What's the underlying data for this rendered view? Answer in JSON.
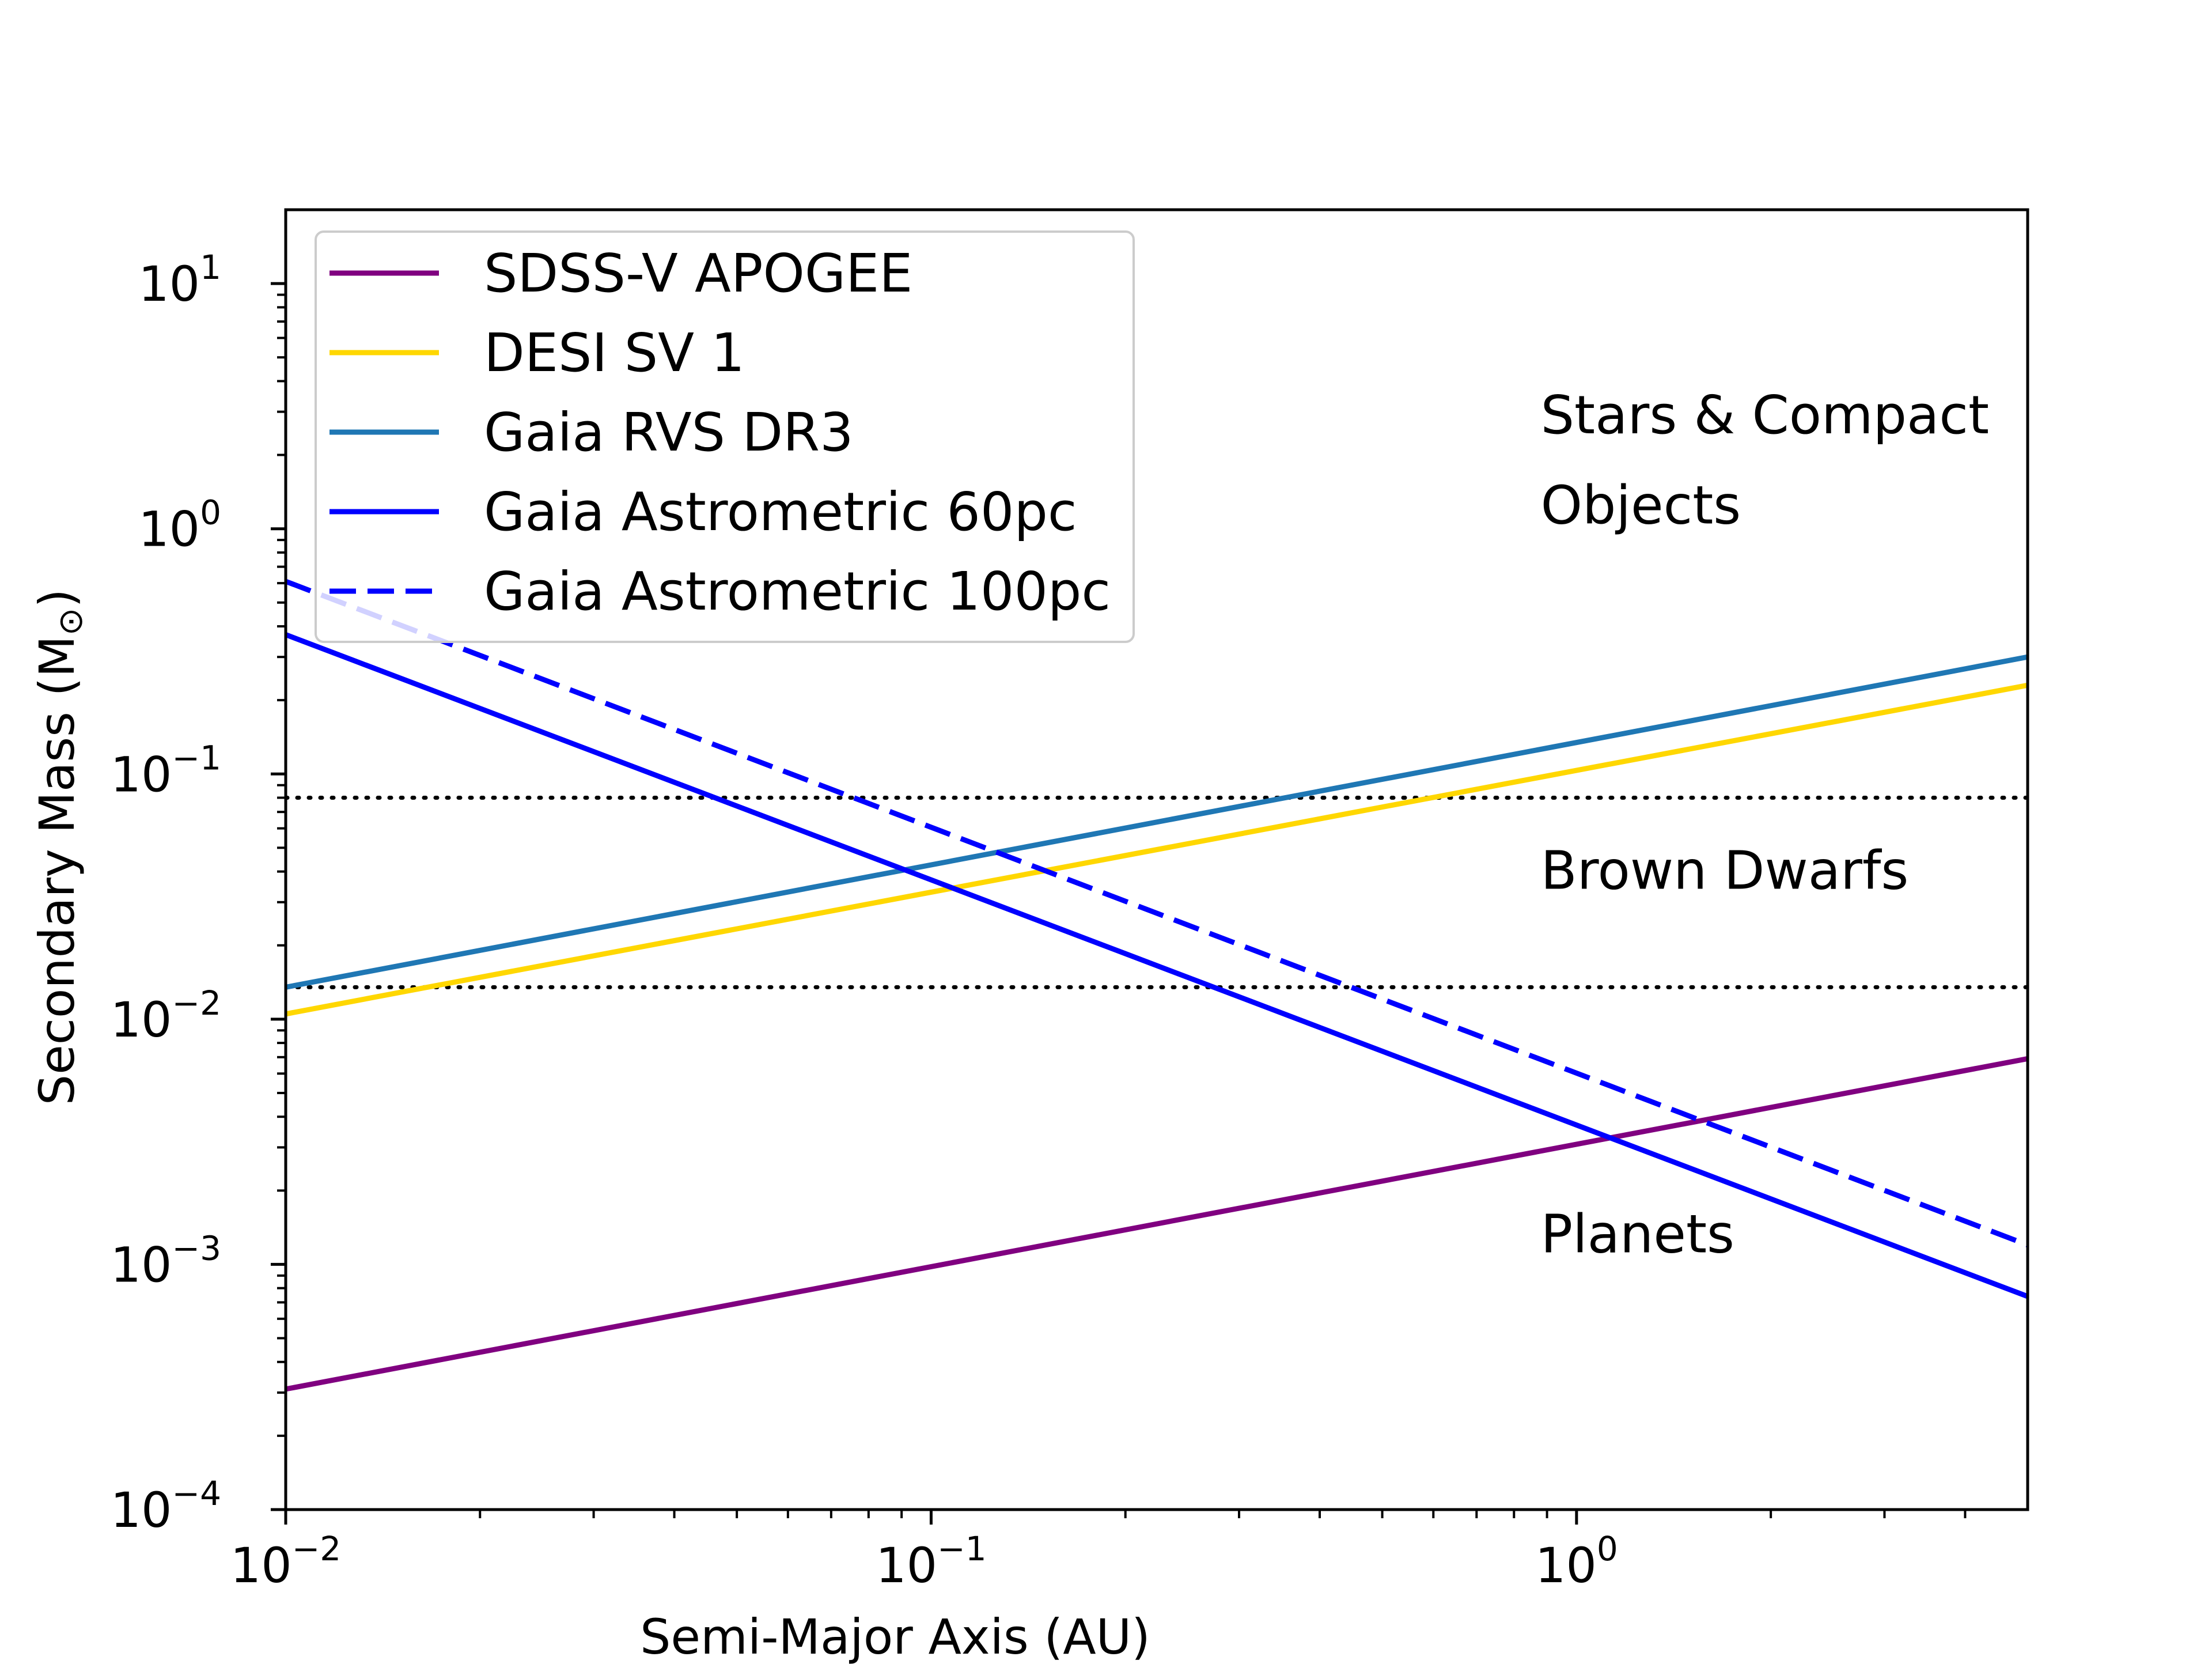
{
  "chart_data": {
    "type": "line",
    "title": "",
    "xlabel": "Semi-Major Axis (AU)",
    "ylabel_main": "Secondary Mass (M",
    "ylabel_close": ")",
    "ylabel_symbol": "⊙",
    "xscale": "log",
    "yscale": "log",
    "xlim": [
      0.01,
      5
    ],
    "ylim": [
      0.0001,
      20
    ],
    "grid": false,
    "legend_position": "upper-left",
    "x_ticks": [
      {
        "value": 0.01,
        "base": "10",
        "exp": "−2"
      },
      {
        "value": 0.1,
        "base": "10",
        "exp": "−1"
      },
      {
        "value": 1,
        "base": "10",
        "exp": "0"
      }
    ],
    "y_ticks": [
      {
        "value": 10,
        "base": "10",
        "exp": "1"
      },
      {
        "value": 1,
        "base": "10",
        "exp": "0"
      },
      {
        "value": 0.1,
        "base": "10",
        "exp": "−1"
      },
      {
        "value": 0.01,
        "base": "10",
        "exp": "−2"
      },
      {
        "value": 0.001,
        "base": "10",
        "exp": "−3"
      },
      {
        "value": 0.0001,
        "base": "10",
        "exp": "−4"
      }
    ],
    "series": [
      {
        "name": "SDSS-V APOGEE",
        "color": "#800080",
        "dash": "solid",
        "x": [
          0.01,
          5
        ],
        "y": [
          0.00031,
          0.0069
        ]
      },
      {
        "name": "DESI SV 1",
        "color": "#ffd700",
        "dash": "solid",
        "x": [
          0.01,
          5
        ],
        "y": [
          0.0105,
          0.23
        ]
      },
      {
        "name": "Gaia RVS DR3",
        "color": "#1f77b4",
        "dash": "solid",
        "x": [
          0.01,
          5
        ],
        "y": [
          0.0135,
          0.3
        ]
      },
      {
        "name": "Gaia Astrometric 60pc",
        "color": "#0000ff",
        "dash": "solid",
        "x": [
          0.01,
          5
        ],
        "y": [
          0.37,
          0.00074
        ]
      },
      {
        "name": "Gaia Astrometric 100pc",
        "color": "#0000ff",
        "dash": "dashed",
        "x": [
          0.01,
          5
        ],
        "y": [
          0.61,
          0.0012
        ]
      }
    ],
    "hlines": [
      {
        "y": 0.08,
        "color": "#000000",
        "style": "dotted"
      },
      {
        "y": 0.0135,
        "color": "#000000",
        "style": "dotted"
      }
    ],
    "annotations": [
      {
        "text": "Stars & Compact",
        "x": 0.88,
        "y": 2.45
      },
      {
        "text": "Objects",
        "x": 0.88,
        "y": 1.05
      },
      {
        "text": "Brown Dwarfs",
        "x": 0.88,
        "y": 0.034
      },
      {
        "text": "Planets",
        "x": 0.88,
        "y": 0.00112
      }
    ]
  }
}
